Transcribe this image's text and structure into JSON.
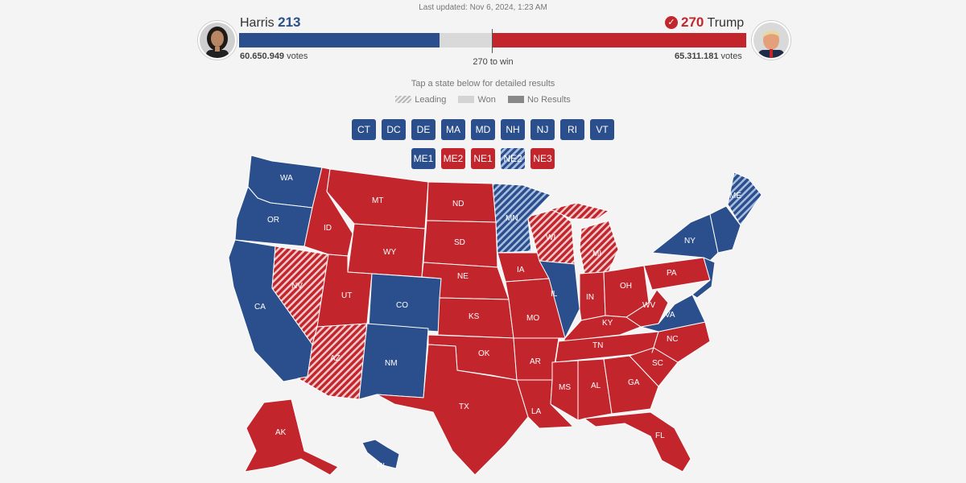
{
  "last_updated": "Last updated: Nov 6, 2024, 1:23 AM",
  "harris": {
    "name": "Harris",
    "electoral_votes": "213",
    "popular_votes": "60.650.949",
    "votes_word": "votes",
    "electoral_fraction": 0.395
  },
  "trump": {
    "name": "Trump",
    "electoral_votes": "270",
    "popular_votes": "65.311.181",
    "votes_word": "votes",
    "electoral_fraction": 0.5,
    "winner": true
  },
  "to_win": "270 to win",
  "instructions": "Tap a state below for detailed results",
  "legend": [
    {
      "label": "Leading",
      "swatch": "leading"
    },
    {
      "label": "Won",
      "swatch": "won"
    },
    {
      "label": "No Results",
      "swatch": "none"
    }
  ],
  "small_states": [
    "CT",
    "DC",
    "DE",
    "MA",
    "MD",
    "NH",
    "NJ",
    "RI",
    "VT"
  ],
  "districts": [
    "ME1",
    "ME2",
    "NE1",
    "NE2",
    "NE3"
  ],
  "colors": {
    "dem": "#2b4f8c",
    "rep": "#c2262c",
    "dem_leading_stripe": "#a9bde0",
    "rep_leading_stripe": "#f2c9cb"
  },
  "map": {
    "WA": "WA",
    "OR": "OR",
    "CA": "CA",
    "NV": "NV",
    "ID": "ID",
    "MT": "MT",
    "WY": "WY",
    "UT": "UT",
    "AZ": "AZ",
    "CO": "CO",
    "NM": "NM",
    "ND": "ND",
    "SD": "SD",
    "NE": "NE",
    "KS": "KS",
    "OK": "OK",
    "TX": "TX",
    "MN": "MN",
    "IA": "IA",
    "MO": "MO",
    "AR": "AR",
    "LA": "LA",
    "WI": "WI",
    "IL": "IL",
    "MI": "MI",
    "IN": "IN",
    "OH": "OH",
    "KY": "KY",
    "TN": "TN",
    "MS": "MS",
    "AL": "AL",
    "GA": "GA",
    "FL": "FL",
    "SC": "SC",
    "NC": "NC",
    "VA": "VA",
    "WV": "WV",
    "PA": "PA",
    "NY": "NY",
    "ME": "ME",
    "AK": "AK",
    "HI": "HI"
  }
}
